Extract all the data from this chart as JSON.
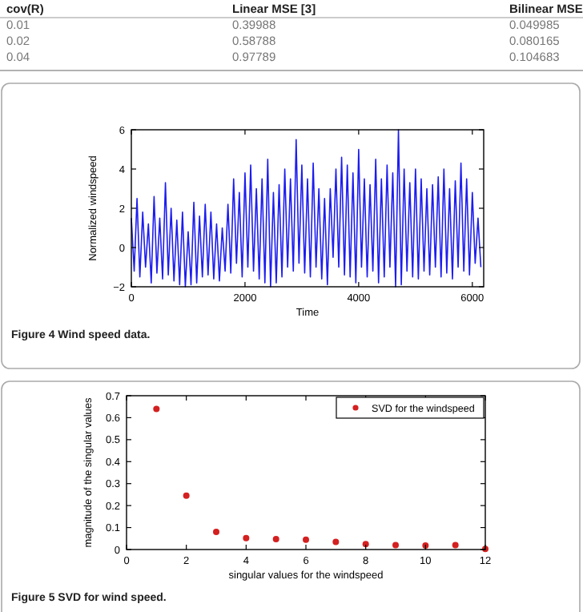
{
  "chart_data": [
    {
      "type": "other",
      "annotations": [
        "cov(R)",
        "Linear MSE [3]",
        "Bilinear MSE",
        "0.01",
        "0.39988",
        "0.049985",
        "0.02",
        "0.58788",
        "0.080165",
        "0.04",
        "0.97789",
        "0.104683"
      ]
    },
    {
      "type": "line",
      "xlabel": "Time",
      "ylabel": "Normalized windspeed",
      "annotations": [
        "Figure 4  Wind speed data."
      ],
      "xlim": [
        0,
        6200
      ],
      "xticks": [
        0,
        2000,
        4000,
        6000
      ],
      "ylim": [
        -2,
        6
      ],
      "yticks": [
        {
          "value": -2,
          "label": "−2"
        },
        0,
        2,
        4,
        6
      ],
      "x": [
        0,
        50,
        100,
        150,
        200,
        250,
        300,
        350,
        400,
        450,
        500,
        550,
        600,
        650,
        700,
        750,
        800,
        850,
        900,
        950,
        1000,
        1050,
        1100,
        1150,
        1200,
        1250,
        1300,
        1350,
        1400,
        1450,
        1500,
        1550,
        1600,
        1650,
        1700,
        1750,
        1800,
        1850,
        1900,
        1950,
        2000,
        2050,
        2100,
        2150,
        2200,
        2250,
        2300,
        2350,
        2400,
        2450,
        2500,
        2550,
        2600,
        2650,
        2700,
        2750,
        2800,
        2850,
        2900,
        2950,
        3000,
        3050,
        3100,
        3150,
        3200,
        3250,
        3300,
        3350,
        3400,
        3450,
        3500,
        3550,
        3600,
        3650,
        3700,
        3750,
        3800,
        3850,
        3900,
        3950,
        4000,
        4050,
        4100,
        4150,
        4200,
        4250,
        4300,
        4350,
        4400,
        4450,
        4500,
        4550,
        4600,
        4650,
        4700,
        4750,
        4800,
        4850,
        4900,
        4950,
        5000,
        5050,
        5100,
        5150,
        5200,
        5250,
        5300,
        5350,
        5400,
        5450,
        5500,
        5550,
        5600,
        5650,
        5700,
        5750,
        5800,
        5850,
        5900,
        5950,
        6000,
        6050,
        6100,
        6150
      ],
      "series": [
        {
          "color": "#1c1cf0",
          "values": [
            1.5,
            -1.2,
            2.5,
            -1.5,
            1.8,
            -1,
            1.2,
            -1.8,
            2.6,
            -1.3,
            1.5,
            -1.6,
            3.3,
            -1.4,
            2,
            -1.7,
            1.4,
            -1.9,
            1.8,
            -2,
            0.8,
            -1.9,
            2.3,
            -1.8,
            1.6,
            -1.5,
            2.2,
            -1.4,
            1.8,
            -1.6,
            1.2,
            -1.7,
            1,
            -1.2,
            2.2,
            -1.3,
            3.5,
            -0.8,
            2.8,
            -1.5,
            3.8,
            -1,
            4.2,
            -1.2,
            3,
            -1.6,
            3.5,
            -1.8,
            4.5,
            -2,
            2.8,
            -1.8,
            3.2,
            -1.5,
            4,
            -1,
            3.5,
            -1.2,
            5.5,
            -0.8,
            4.2,
            -1.3,
            3.5,
            -1.5,
            4.3,
            -1,
            3,
            -1.6,
            2.5,
            -1.9,
            3,
            -0.5,
            4,
            -1,
            4.6,
            -1.4,
            4.2,
            -1.5,
            3.8,
            -1.8,
            5,
            -1,
            3.5,
            -1.5,
            3.2,
            -1.2,
            4.5,
            -1.8,
            3.5,
            -1.5,
            4.2,
            -1,
            3.8,
            -2,
            6,
            -1.9,
            4,
            -1.2,
            3.3,
            -1.5,
            4,
            -1.6,
            3.5,
            -1.2,
            3,
            -1.4,
            3.2,
            -1,
            3.6,
            -1.5,
            4,
            -1.3,
            3,
            -1.6,
            3.4,
            -1,
            4.3,
            -1.2,
            3.5,
            -1.4,
            2.8,
            -0.8,
            1.5,
            -1
          ]
        }
      ]
    },
    {
      "type": "scatter",
      "xlabel": "singular values for the windspeed",
      "ylabel": "magnitude of the singular values",
      "annotations": [
        "Figure 5  SVD for wind speed."
      ],
      "xlim": [
        0,
        12
      ],
      "xticks": [
        0,
        2,
        4,
        6,
        8,
        10,
        12
      ],
      "ylim": [
        0,
        0.7
      ],
      "yticks": [
        0,
        0.1,
        0.2,
        0.3,
        0.4,
        0.5,
        0.6,
        0.7
      ],
      "legend": "top right",
      "marker": "circle",
      "x": [
        1,
        2,
        3,
        4,
        5,
        6,
        7,
        8,
        9,
        10,
        11,
        12
      ],
      "series": [
        {
          "name": "SVD for the windspeed",
          "color": "#d42020",
          "values": [
            0.64,
            0.245,
            0.08,
            0.052,
            0.047,
            0.045,
            0.035,
            0.025,
            0.02,
            0.018,
            0.02,
            0.003
          ]
        }
      ]
    }
  ]
}
